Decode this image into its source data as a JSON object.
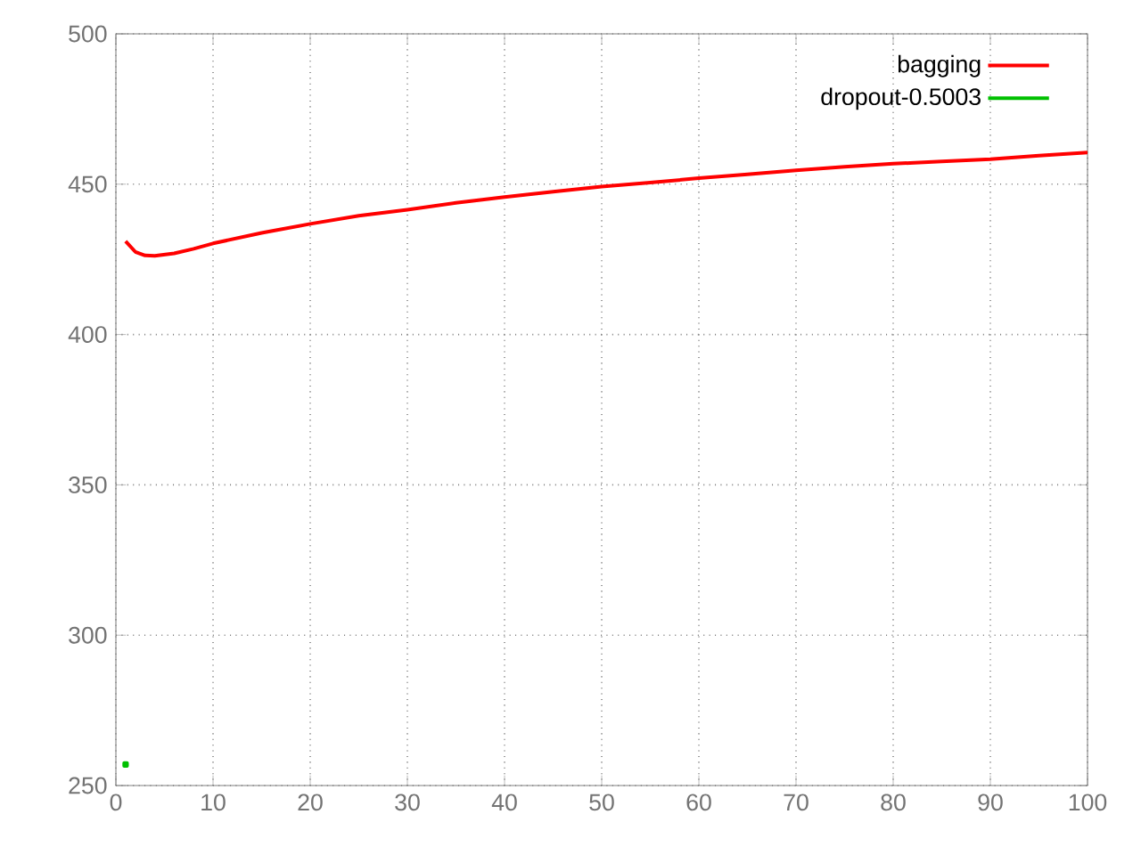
{
  "chart_data": {
    "type": "line",
    "x": [
      1,
      2,
      3,
      4,
      6,
      8,
      10,
      15,
      20,
      25,
      30,
      35,
      40,
      45,
      50,
      55,
      60,
      65,
      70,
      75,
      80,
      85,
      90,
      95,
      100
    ],
    "series": [
      {
        "name": "bagging",
        "color": "#ff0000",
        "values": [
          431,
          427.5,
          426.3,
          426.2,
          427,
          428.5,
          430.3,
          433.8,
          436.8,
          439.5,
          441.5,
          443.8,
          445.7,
          447.5,
          449.2,
          450.5,
          452,
          453.3,
          454.6,
          455.8,
          456.8,
          457.6,
          458.3,
          459.5,
          460.5
        ]
      },
      {
        "name": "dropout-0.5003",
        "color": "#00c000",
        "x": [
          1
        ],
        "values": [
          257
        ],
        "marker": "square"
      }
    ],
    "xlim": [
      0,
      100
    ],
    "ylim": [
      250,
      500
    ],
    "xticks": [
      0,
      10,
      20,
      30,
      40,
      50,
      60,
      70,
      80,
      90,
      100
    ],
    "yticks": [
      250,
      300,
      350,
      400,
      450,
      500
    ],
    "grid": true,
    "legend": "top right"
  }
}
